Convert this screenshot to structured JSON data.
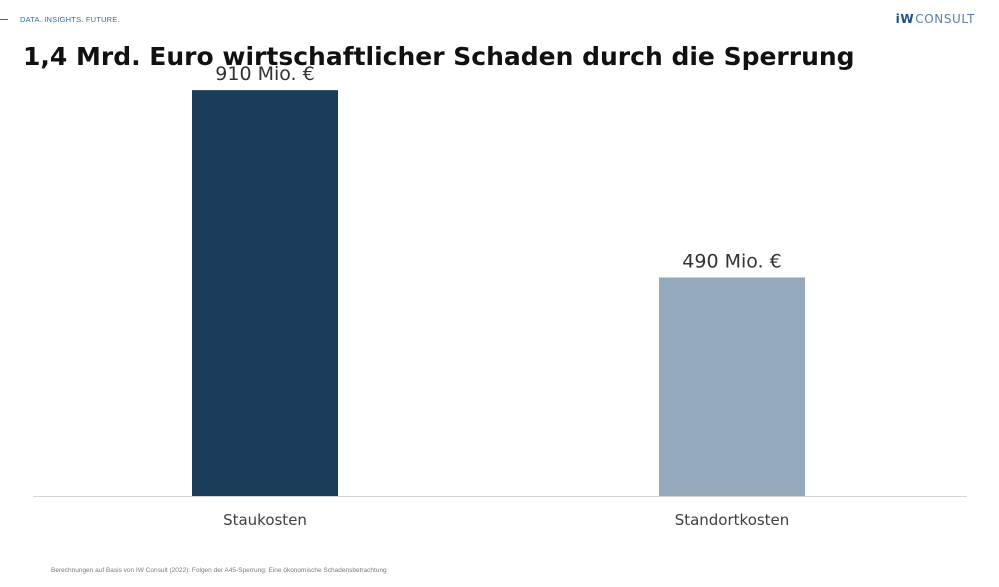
{
  "header": {
    "tagline": "DATA. INSIGHTS. FUTURE.",
    "logo_bold": "iW",
    "logo_text": "CONSULT"
  },
  "chart_data": {
    "type": "bar",
    "title": "1,4 Mrd. Euro wirtschaftlicher Schaden durch die Sperrung",
    "categories": [
      "Staukosten",
      "Standortkosten"
    ],
    "values": [
      910,
      490
    ],
    "data_labels": [
      "910 Mio. €",
      "490 Mio. €"
    ],
    "colors": [
      "#1c3d5a",
      "#94a9bb"
    ],
    "ylim": [
      0,
      1000
    ],
    "grid": false,
    "legend": "none"
  },
  "footer": {
    "source": "Berechnungen auf Basis von IW Consult (2022): Folgen der A45-Sperrung: Eine ökonomische Schadensbetrachtung"
  }
}
